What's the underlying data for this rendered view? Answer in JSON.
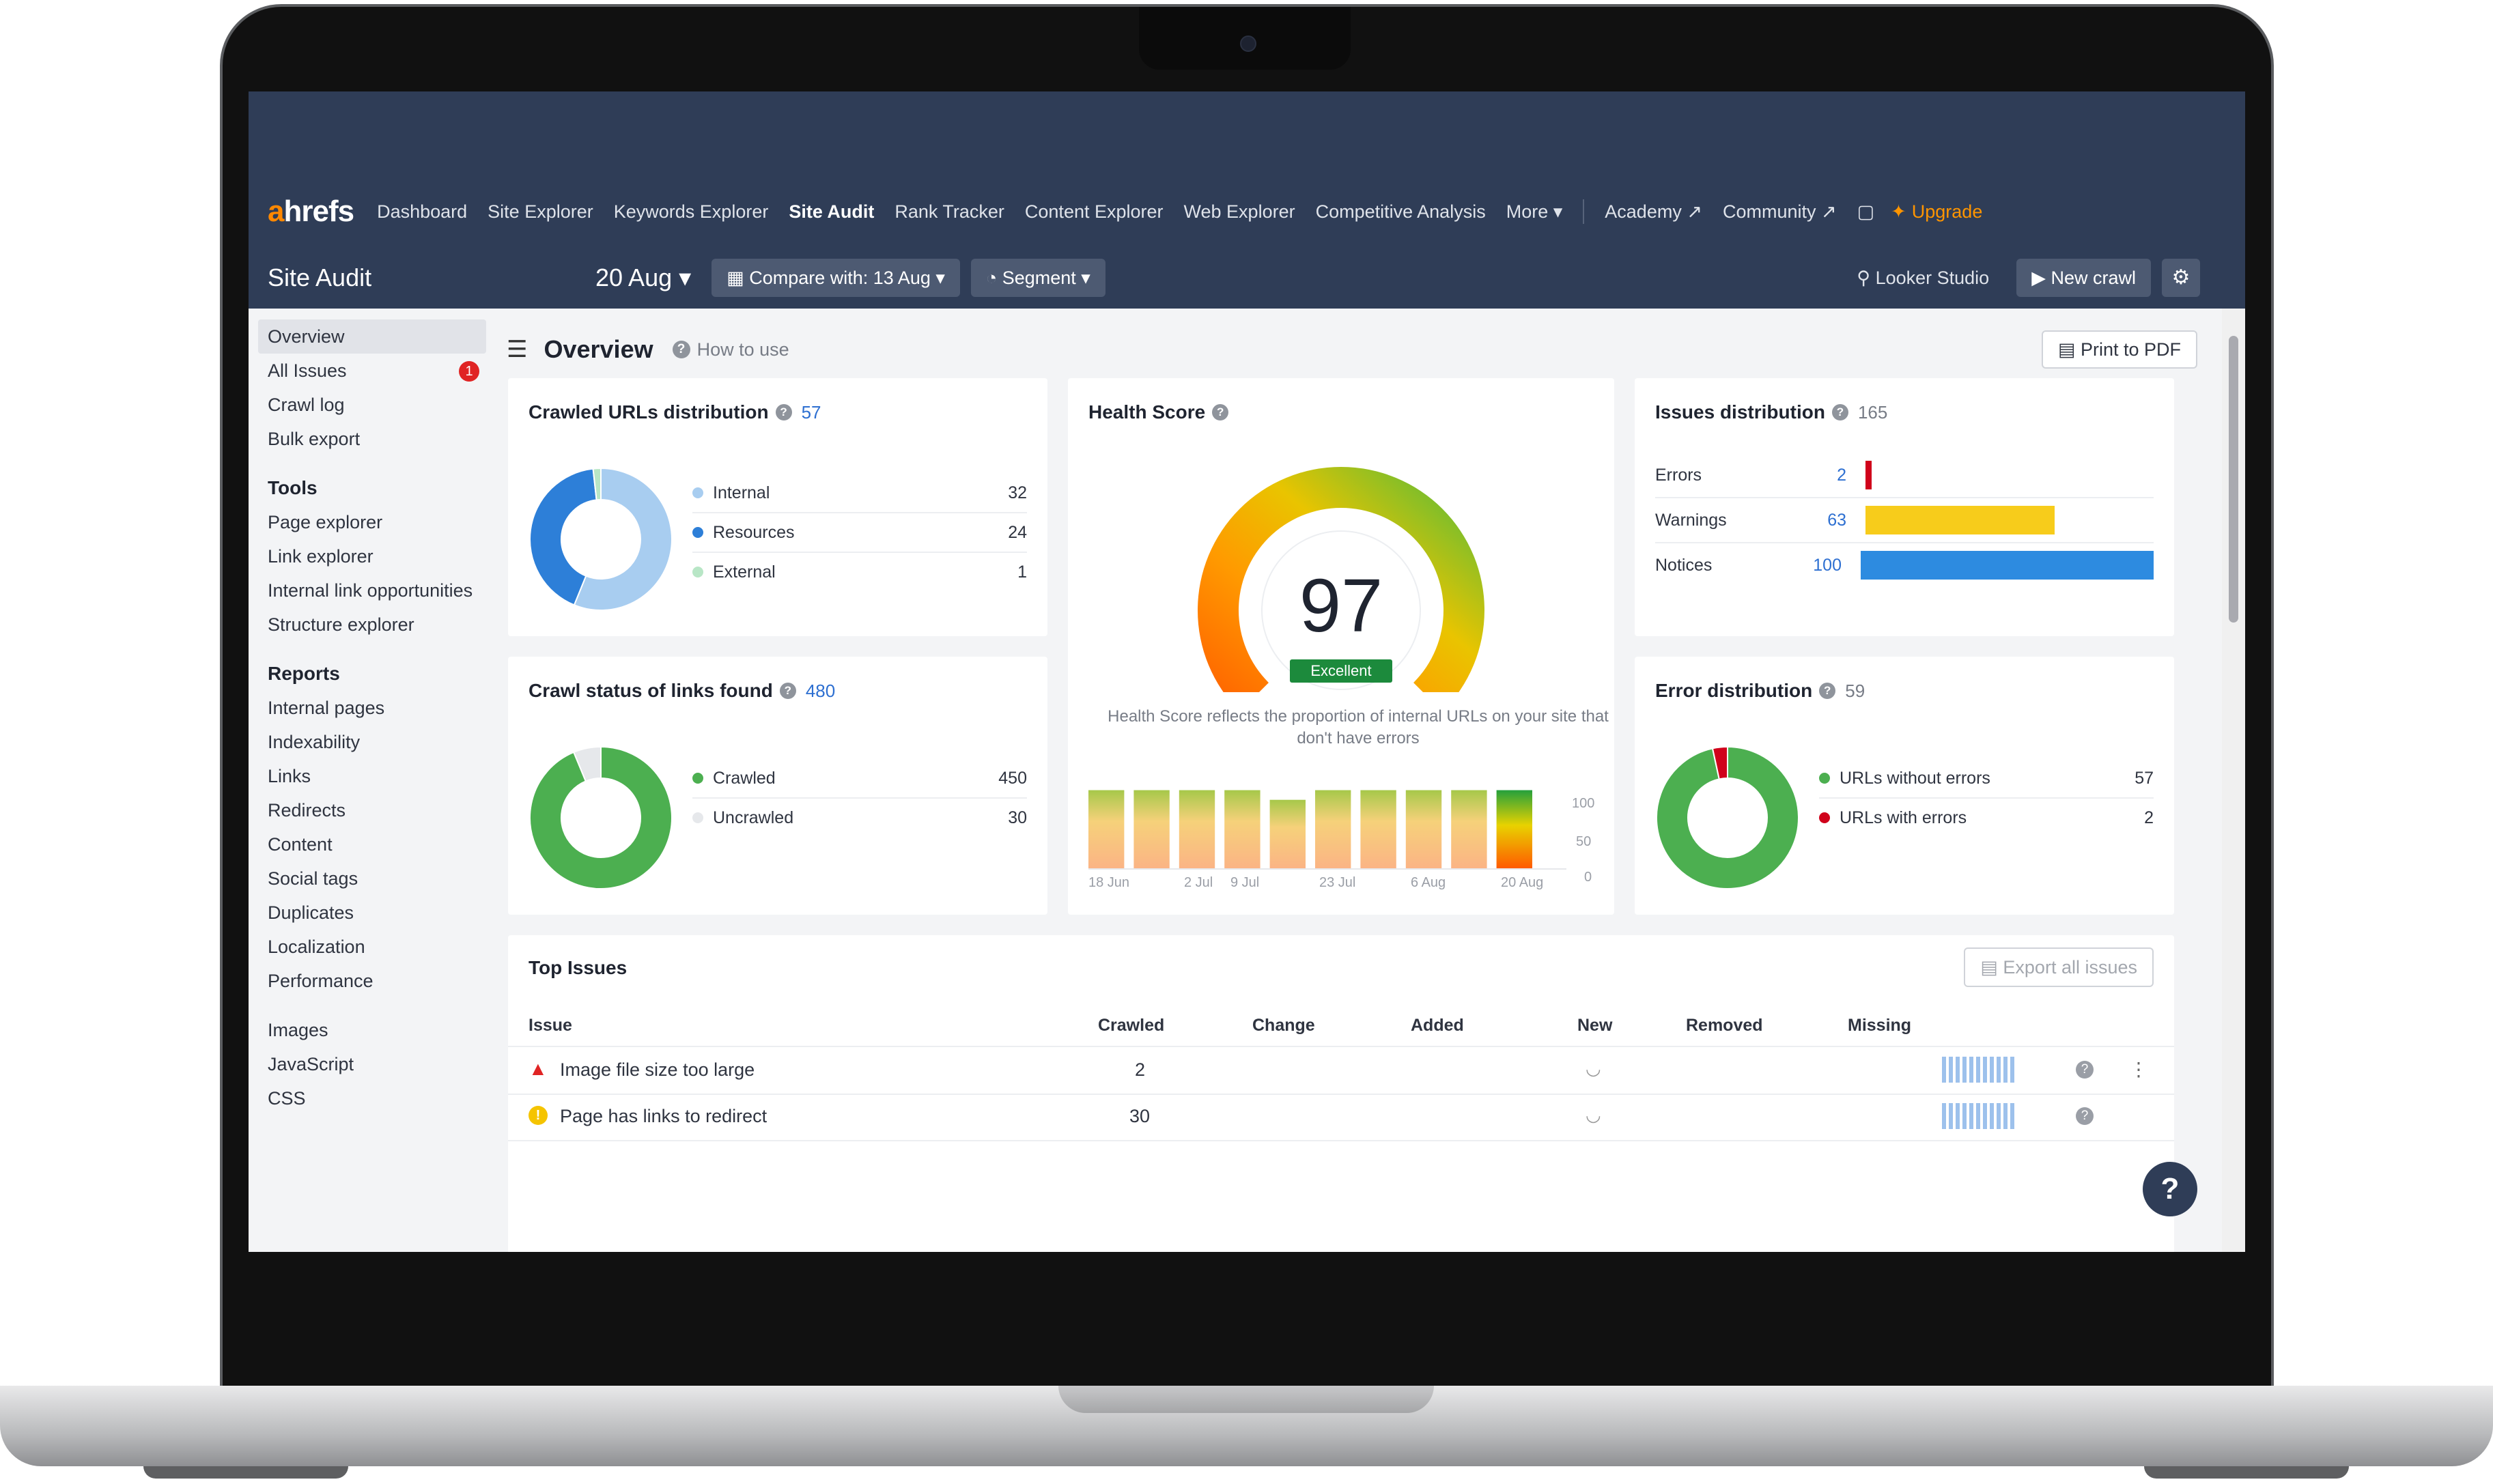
{
  "nav": {
    "logo_a": "a",
    "logo_rest": "hrefs",
    "items": [
      "Dashboard",
      "Site Explorer",
      "Keywords Explorer",
      "Site Audit",
      "Rank Tracker",
      "Content Explorer",
      "Web Explorer",
      "Competitive Analysis",
      "More ▾"
    ],
    "academy": "Academy ↗",
    "community": "Community ↗",
    "upgrade": "Upgrade"
  },
  "subbar": {
    "title": "Site Audit",
    "date": "20 Aug ▾",
    "compare": "Compare with: 13 Aug ▾",
    "segment": "Segment ▾",
    "looker": "Looker Studio",
    "new_crawl": "New crawl"
  },
  "sidebar": {
    "overview": "Overview",
    "all_issues": "All Issues",
    "all_issues_badge": "1",
    "crawl_log": "Crawl log",
    "bulk_export": "Bulk export",
    "tools_head": "Tools",
    "tools": [
      "Page explorer",
      "Link explorer",
      "Internal link opportunities",
      "Structure explorer"
    ],
    "reports_head": "Reports",
    "reports": [
      "Internal pages",
      "Indexability",
      "Links",
      "Redirects",
      "Content",
      "Social tags",
      "Duplicates",
      "Localization",
      "Performance"
    ],
    "extra": [
      "Images",
      "JavaScript",
      "CSS"
    ]
  },
  "overview": {
    "title": "Overview",
    "howto": "How to use",
    "print": "Print to PDF"
  },
  "crawled": {
    "title": "Crawled URLs distribution",
    "count": "57",
    "items": [
      {
        "name": "Internal",
        "value": "32",
        "color": "#a8cdf0"
      },
      {
        "name": "Resources",
        "value": "24",
        "color": "#2d7fd8"
      },
      {
        "name": "External",
        "value": "1",
        "color": "#b8e6c6"
      }
    ]
  },
  "crawlstatus": {
    "title": "Crawl status of links found",
    "count": "480",
    "items": [
      {
        "name": "Crawled",
        "value": "450",
        "color": "#4caf50"
      },
      {
        "name": "Uncrawled",
        "value": "30",
        "color": "#e6e8eb"
      }
    ]
  },
  "health": {
    "title": "Health Score",
    "score": "97",
    "badge": "Excellent",
    "desc": "Health Score reflects the proportion of internal URLs on your site that don't have errors",
    "history": [
      97,
      97,
      97,
      97,
      85,
      97,
      97,
      97,
      97,
      97
    ],
    "xlabels": [
      "18 Jun",
      "2 Jul",
      "9 Jul",
      "23 Jul",
      "6 Aug",
      "20 Aug"
    ],
    "ylabels": [
      "100",
      "50",
      "0"
    ]
  },
  "issues": {
    "title": "Issues distribution",
    "count": "165",
    "items": [
      {
        "name": "Errors",
        "value": "2",
        "color": "#d0021b"
      },
      {
        "name": "Warnings",
        "value": "63",
        "color": "#f7cc1b"
      },
      {
        "name": "Notices",
        "value": "100",
        "color": "#2d8be0"
      }
    ]
  },
  "errordist": {
    "title": "Error distribution",
    "count": "59",
    "items": [
      {
        "name": "URLs without errors",
        "value": "57",
        "color": "#4caf50"
      },
      {
        "name": "URLs with errors",
        "value": "2",
        "color": "#d0021b"
      }
    ]
  },
  "topissues": {
    "title": "Top Issues",
    "export": "Export all issues",
    "headers": [
      "Issue",
      "Crawled",
      "Change",
      "Added",
      "New",
      "Removed",
      "Missing"
    ],
    "rows": [
      {
        "name": "Image file size too large",
        "crawled": "2"
      },
      {
        "name": "Page has links to redirect",
        "crawled": "30"
      }
    ]
  }
}
